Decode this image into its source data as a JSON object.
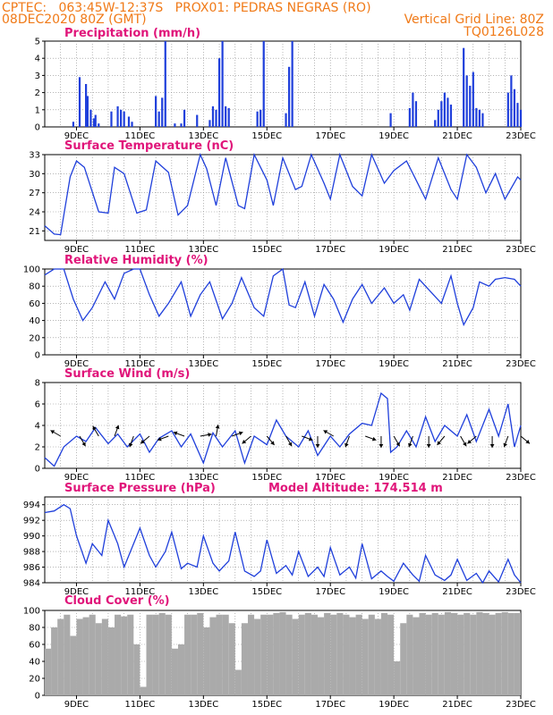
{
  "header": {
    "line1_left": "CPTEC:   063:45W-12:37S   PROX01: PEDRAS NEGRAS (RO)",
    "line2_left": "08DEC2020 80Z (GMT)",
    "line2_right": "Vertical Grid Line: 80Z",
    "line3_right": "TQ0126L028"
  },
  "x_ticks": [
    "9DEC",
    "11DEC",
    "13DEC",
    "15DEC",
    "17DEC",
    "19DEC",
    "21DEC",
    "23DEC"
  ],
  "colors": {
    "line": "#1f3fdb",
    "bar": "#1f3fdb",
    "cloud": "#aaaaaa",
    "title": "#e0157a",
    "header": "#f07a18",
    "grid": "#8a8a8a"
  },
  "panels": {
    "precip": {
      "title": "Precipitation (mm/h)"
    },
    "temp": {
      "title": "Surface Temperature (nC)"
    },
    "rh": {
      "title": "Relative Humidity (%)"
    },
    "wind": {
      "title": "Surface Wind (m/s)"
    },
    "pressure": {
      "title": "Surface Pressure (hPa)",
      "model_altitude": "Model Altitude: 174.514 m"
    },
    "cloud": {
      "title": "Cloud Cover (%)"
    }
  },
  "chart_data": [
    {
      "type": "bar",
      "panel": "precip",
      "title": "Precipitation (mm/h)",
      "x_unit": "day of December 2020",
      "xlim": [
        8,
        23
      ],
      "ylim": [
        0,
        5
      ],
      "yticks": [
        "0",
        "1",
        "2",
        "3",
        "4",
        "5"
      ],
      "grid": true,
      "x": [
        8.9,
        9.1,
        9.3,
        9.35,
        9.45,
        9.55,
        9.6,
        9.7,
        10.1,
        10.3,
        10.4,
        10.5,
        10.65,
        10.75,
        11.5,
        11.6,
        11.7,
        11.8,
        12.1,
        12.3,
        12.4,
        12.8,
        13.2,
        13.3,
        13.4,
        13.5,
        13.6,
        13.7,
        13.8,
        14.7,
        14.8,
        14.9,
        15.6,
        15.7,
        15.8,
        18.9,
        19.5,
        19.6,
        19.7,
        20.3,
        20.4,
        20.5,
        20.6,
        20.7,
        20.8,
        21.2,
        21.3,
        21.4,
        21.5,
        21.6,
        21.7,
        21.8,
        22.6,
        22.7,
        22.8,
        22.9,
        23.0
      ],
      "values": [
        0.3,
        2.9,
        2.5,
        1.8,
        1.0,
        0.5,
        0.7,
        0.2,
        0.9,
        1.2,
        1.0,
        0.9,
        0.6,
        0.3,
        1.8,
        0.9,
        1.7,
        5.0,
        0.2,
        0.2,
        1.0,
        0.7,
        0.4,
        1.2,
        1.0,
        4.0,
        5.0,
        1.2,
        1.1,
        0.9,
        1.0,
        5.0,
        0.8,
        3.5,
        5.0,
        0.8,
        1.1,
        2.0,
        1.5,
        0.4,
        1.0,
        1.5,
        2.0,
        1.7,
        1.3,
        4.6,
        3.0,
        2.4,
        3.2,
        1.1,
        1.0,
        0.8,
        2.0,
        3.0,
        2.2,
        1.4,
        1.0
      ],
      "xlabel": "",
      "ylabel": ""
    },
    {
      "type": "line",
      "panel": "temp",
      "title": "Surface Temperature (nC)",
      "x_unit": "day of December 2020",
      "xlim": [
        8,
        23
      ],
      "ylim": [
        19.5,
        33
      ],
      "yticks": [
        "21",
        "24",
        "27",
        "30",
        "33"
      ],
      "grid": true,
      "x": [
        8.0,
        8.3,
        8.5,
        8.8,
        9.0,
        9.25,
        9.7,
        10.0,
        10.2,
        10.5,
        10.9,
        11.2,
        11.5,
        11.9,
        12.2,
        12.5,
        12.9,
        13.1,
        13.4,
        13.7,
        14.1,
        14.3,
        14.6,
        15.0,
        15.2,
        15.5,
        15.9,
        16.1,
        16.4,
        16.8,
        17.0,
        17.3,
        17.7,
        18.0,
        18.3,
        18.7,
        19.0,
        19.4,
        19.7,
        20.0,
        20.4,
        20.8,
        21.0,
        21.3,
        21.6,
        21.9,
        22.2,
        22.5,
        22.9,
        23.0
      ],
      "values": [
        21.8,
        20.5,
        20.4,
        29.5,
        32.0,
        31.0,
        24.0,
        23.8,
        31.0,
        30.0,
        23.8,
        24.3,
        32.0,
        30.2,
        23.5,
        25.0,
        33.0,
        30.8,
        25.0,
        32.5,
        25.0,
        24.5,
        33.0,
        29.0,
        25.0,
        32.5,
        27.5,
        28.0,
        33.0,
        28.5,
        26.0,
        33.0,
        28.0,
        26.5,
        33.0,
        28.5,
        30.5,
        32.0,
        29.0,
        26.0,
        32.5,
        27.5,
        26.0,
        33.0,
        31.0,
        27.0,
        30.0,
        26.0,
        29.5,
        29.0
      ],
      "xlabel": "",
      "ylabel": ""
    },
    {
      "type": "line",
      "panel": "rh",
      "title": "Relative Humidity (%)",
      "x_unit": "day of December 2020",
      "xlim": [
        8,
        23
      ],
      "ylim": [
        0,
        100
      ],
      "yticks": [
        "0",
        "20",
        "40",
        "60",
        "80",
        "100"
      ],
      "grid": true,
      "x": [
        8.0,
        8.3,
        8.6,
        8.9,
        9.2,
        9.5,
        9.9,
        10.2,
        10.5,
        10.8,
        11.0,
        11.3,
        11.6,
        11.9,
        12.3,
        12.6,
        12.9,
        13.2,
        13.6,
        13.9,
        14.2,
        14.6,
        14.9,
        15.2,
        15.5,
        15.7,
        15.9,
        16.2,
        16.5,
        16.8,
        17.1,
        17.4,
        17.7,
        18.0,
        18.3,
        18.7,
        19.0,
        19.3,
        19.5,
        19.8,
        20.2,
        20.5,
        20.8,
        21.0,
        21.2,
        21.5,
        21.7,
        22.0,
        22.2,
        22.5,
        22.8,
        23.0
      ],
      "values": [
        93,
        100,
        100,
        65,
        40,
        55,
        85,
        65,
        95,
        100,
        100,
        70,
        45,
        60,
        85,
        45,
        70,
        85,
        42,
        60,
        90,
        55,
        45,
        92,
        100,
        58,
        55,
        85,
        45,
        82,
        65,
        38,
        65,
        82,
        60,
        78,
        60,
        70,
        52,
        88,
        72,
        60,
        92,
        60,
        35,
        55,
        85,
        80,
        88,
        90,
        88,
        80
      ],
      "xlabel": "",
      "ylabel": ""
    },
    {
      "type": "line",
      "panel": "wind",
      "title": "Surface Wind (m/s)",
      "x_unit": "day of December 2020",
      "xlim": [
        8,
        23
      ],
      "ylim": [
        0,
        8
      ],
      "yticks": [
        "0",
        "2",
        "4",
        "6",
        "8"
      ],
      "grid": true,
      "x": [
        8.0,
        8.3,
        8.6,
        9.0,
        9.3,
        9.6,
        10.0,
        10.3,
        10.6,
        11.0,
        11.3,
        11.6,
        12.0,
        12.3,
        12.6,
        13.0,
        13.3,
        13.6,
        14.0,
        14.3,
        14.6,
        15.0,
        15.3,
        15.6,
        16.0,
        16.3,
        16.6,
        17.0,
        17.3,
        17.6,
        18.0,
        18.3,
        18.6,
        18.8,
        18.9,
        19.1,
        19.4,
        19.7,
        20.0,
        20.3,
        20.6,
        21.0,
        21.3,
        21.6,
        22.0,
        22.3,
        22.6,
        22.8,
        23.0
      ],
      "values": [
        1.0,
        0.2,
        2.0,
        3.0,
        2.5,
        3.8,
        2.3,
        3.2,
        2.0,
        3.2,
        1.5,
        2.8,
        3.5,
        2.0,
        3.2,
        0.5,
        3.3,
        2.0,
        3.5,
        0.5,
        3.0,
        2.2,
        4.5,
        3.0,
        2.0,
        3.5,
        1.2,
        3.0,
        2.0,
        3.2,
        4.2,
        4.0,
        7.0,
        6.5,
        1.5,
        2.0,
        3.5,
        2.0,
        4.8,
        2.5,
        4.0,
        3.0,
        5.0,
        2.5,
        5.5,
        3.0,
        6.0,
        2.0,
        4.0
      ],
      "arrows": [
        {
          "x": 8.5,
          "dir": 300
        },
        {
          "x": 9.1,
          "dir": 150
        },
        {
          "x": 9.7,
          "dir": 330
        },
        {
          "x": 10.2,
          "dir": 20
        },
        {
          "x": 10.8,
          "dir": 200
        },
        {
          "x": 11.3,
          "dir": 230
        },
        {
          "x": 11.9,
          "dir": 250
        },
        {
          "x": 12.4,
          "dir": 290
        },
        {
          "x": 12.9,
          "dir": 80
        },
        {
          "x": 13.4,
          "dir": 10
        },
        {
          "x": 13.9,
          "dir": 70
        },
        {
          "x": 14.5,
          "dir": 230
        },
        {
          "x": 15.0,
          "dir": 140
        },
        {
          "x": 15.6,
          "dir": 150
        },
        {
          "x": 16.1,
          "dir": 110
        },
        {
          "x": 16.6,
          "dir": 180
        },
        {
          "x": 17.1,
          "dir": 300
        },
        {
          "x": 17.6,
          "dir": 200
        },
        {
          "x": 18.1,
          "dir": 110
        },
        {
          "x": 18.6,
          "dir": 180
        },
        {
          "x": 19.0,
          "dir": 150
        },
        {
          "x": 19.6,
          "dir": 200
        },
        {
          "x": 20.1,
          "dir": 180
        },
        {
          "x": 20.6,
          "dir": 220
        },
        {
          "x": 21.1,
          "dir": 150
        },
        {
          "x": 21.6,
          "dir": 230
        },
        {
          "x": 22.1,
          "dir": 180
        },
        {
          "x": 22.6,
          "dir": 200
        },
        {
          "x": 23.0,
          "dir": 130
        }
      ],
      "xlabel": "",
      "ylabel": ""
    },
    {
      "type": "line",
      "panel": "pressure",
      "title": "Surface Pressure (hPa)",
      "x_unit": "day of December 2020",
      "xlim": [
        8,
        23
      ],
      "ylim": [
        984,
        995
      ],
      "yticks": [
        "984",
        "986",
        "988",
        "990",
        "992",
        "994"
      ],
      "grid": true,
      "x": [
        8.0,
        8.3,
        8.6,
        8.8,
        9.0,
        9.3,
        9.5,
        9.8,
        10.0,
        10.3,
        10.5,
        10.8,
        11.0,
        11.3,
        11.5,
        11.8,
        12.0,
        12.3,
        12.5,
        12.8,
        13.0,
        13.3,
        13.5,
        13.8,
        14.0,
        14.3,
        14.6,
        14.8,
        15.0,
        15.3,
        15.6,
        15.8,
        16.0,
        16.3,
        16.6,
        16.8,
        17.0,
        17.3,
        17.6,
        17.8,
        18.0,
        18.3,
        18.6,
        18.8,
        19.0,
        19.3,
        19.6,
        19.8,
        20.0,
        20.3,
        20.6,
        20.8,
        21.0,
        21.3,
        21.6,
        21.8,
        22.0,
        22.3,
        22.6,
        22.8,
        23.0
      ],
      "values": [
        993.0,
        993.2,
        994.0,
        993.5,
        990.0,
        986.5,
        989.0,
        987.5,
        992.0,
        989.0,
        986.0,
        989.0,
        991.0,
        987.5,
        986.0,
        988.0,
        990.5,
        985.8,
        986.5,
        986.0,
        990.0,
        986.5,
        985.5,
        986.8,
        990.5,
        985.5,
        984.8,
        985.5,
        989.5,
        985.2,
        986.2,
        985.0,
        988.0,
        984.8,
        986.0,
        984.8,
        988.5,
        985.0,
        986.0,
        984.6,
        989.0,
        984.5,
        985.5,
        984.8,
        984.2,
        986.5,
        985.0,
        984.2,
        987.5,
        985.0,
        984.3,
        985.0,
        987.0,
        984.3,
        985.2,
        984.0,
        985.5,
        984.1,
        987.0,
        985.0,
        984.0
      ],
      "xlabel": "",
      "ylabel": ""
    },
    {
      "type": "bar",
      "panel": "cloud",
      "title": "Cloud Cover (%)",
      "x_unit": "day of December 2020",
      "xlim": [
        8,
        23
      ],
      "ylim": [
        0,
        100
      ],
      "yticks": [
        "0",
        "20",
        "40",
        "60",
        "80",
        "100"
      ],
      "grid": true,
      "x": [
        8.0,
        8.2,
        8.4,
        8.6,
        8.8,
        9.0,
        9.2,
        9.4,
        9.6,
        9.8,
        10.0,
        10.2,
        10.4,
        10.6,
        10.8,
        11.0,
        11.2,
        11.4,
        11.6,
        11.8,
        12.0,
        12.2,
        12.4,
        12.6,
        12.8,
        13.0,
        13.2,
        13.4,
        13.6,
        13.8,
        14.0,
        14.2,
        14.4,
        14.6,
        14.8,
        15.0,
        15.2,
        15.4,
        15.6,
        15.8,
        16.0,
        16.2,
        16.4,
        16.6,
        16.8,
        17.0,
        17.2,
        17.4,
        17.6,
        17.8,
        18.0,
        18.2,
        18.4,
        18.6,
        18.8,
        19.0,
        19.2,
        19.4,
        19.6,
        19.8,
        20.0,
        20.2,
        20.4,
        20.6,
        20.8,
        21.0,
        21.2,
        21.4,
        21.6,
        21.8,
        22.0,
        22.2,
        22.4,
        22.6,
        22.8
      ],
      "values": [
        55,
        80,
        90,
        95,
        70,
        90,
        92,
        95,
        85,
        90,
        80,
        95,
        93,
        95,
        60,
        10,
        95,
        95,
        97,
        95,
        55,
        60,
        95,
        95,
        97,
        80,
        92,
        95,
        95,
        85,
        30,
        85,
        95,
        90,
        95,
        95,
        97,
        98,
        95,
        90,
        95,
        97,
        95,
        92,
        97,
        95,
        97,
        95,
        92,
        95,
        90,
        95,
        90,
        97,
        95,
        40,
        85,
        95,
        92,
        97,
        95,
        97,
        95,
        98,
        97,
        95,
        97,
        95,
        98,
        97,
        95,
        97,
        98,
        97,
        97
      ],
      "xlabel": "",
      "ylabel": ""
    }
  ]
}
